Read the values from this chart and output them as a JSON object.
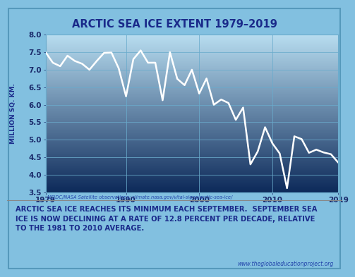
{
  "title": "ARCTIC SEA ICE EXTENT 1979–2019",
  "ylabel_chars": [
    ".",
    "K",
    "M",
    ".",
    " ",
    "Q",
    "S",
    " ",
    "N",
    "O",
    "I",
    "L",
    "L",
    "I",
    "M"
  ],
  "source": "NSIDC/NASA Satellite observations; climate.nasa.gov/vital-signs/arctic-sea-ice/",
  "caption_line1": "ARCTIC SEA ICE REACHES ITS MINIMUM EACH SEPTEMBER.  SEPTEMBER SEA",
  "caption_line2": "ICE IS NOW DECLINING AT A RATE OF 12.8 PERCENT PER DECADE, RELATIVE",
  "caption_line3": "TO THE 1981 TO 2010 AVERAGE.",
  "website": "www.theglobaleducationproject.org",
  "years": [
    1979,
    1980,
    1981,
    1982,
    1983,
    1984,
    1985,
    1986,
    1987,
    1988,
    1989,
    1990,
    1991,
    1992,
    1993,
    1994,
    1995,
    1996,
    1997,
    1998,
    1999,
    2000,
    2001,
    2002,
    2003,
    2004,
    2005,
    2006,
    2007,
    2008,
    2009,
    2010,
    2011,
    2012,
    2013,
    2014,
    2015,
    2016,
    2017,
    2018,
    2019
  ],
  "values": [
    7.5,
    7.2,
    7.1,
    7.4,
    7.25,
    7.17,
    7.0,
    7.25,
    7.48,
    7.49,
    7.04,
    6.24,
    7.3,
    7.55,
    7.2,
    7.2,
    6.13,
    7.5,
    6.74,
    6.56,
    7.0,
    6.32,
    6.75,
    6.0,
    6.15,
    6.05,
    5.57,
    5.92,
    4.3,
    4.67,
    5.36,
    4.9,
    4.61,
    3.62,
    5.1,
    5.02,
    4.63,
    4.72,
    4.64,
    4.59,
    4.35
  ],
  "xlim": [
    1979,
    2019
  ],
  "ylim": [
    3.5,
    8.0
  ],
  "yticks": [
    3.5,
    4.0,
    4.5,
    5.0,
    5.5,
    6.0,
    6.5,
    7.0,
    7.5,
    8.0
  ],
  "xticks": [
    1979,
    1990,
    2000,
    2010,
    2019
  ],
  "xtick_labels": [
    "1979",
    "1990",
    "2000",
    "2010",
    "2019"
  ],
  "line_color": "#ffffff",
  "line_width": 1.8,
  "grid_color": "#6aabcc",
  "bg_color_top": "#b8ddf0",
  "bg_color_bottom": "#0d2a5a",
  "outer_bg": "#82c0e0",
  "chart_outer_bg": "#82c0e0",
  "caption_bg": "#c8e8f8",
  "title_color": "#1a2a8a",
  "caption_color": "#1a2a8a",
  "tick_color": "#1a2a6a",
  "source_color": "#2244aa"
}
